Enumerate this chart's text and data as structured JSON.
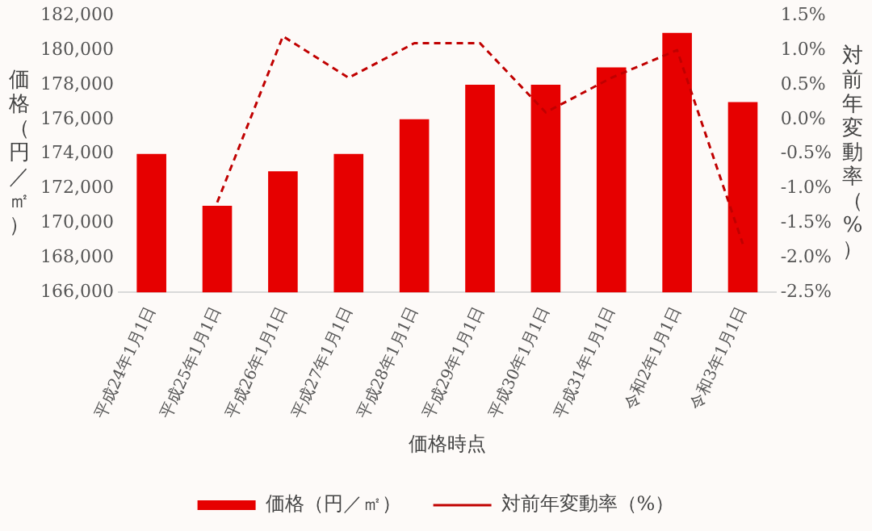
{
  "chart_data": {
    "type": "bar",
    "xlabel": "価格時点",
    "ylabel": "価格（円／㎡）",
    "y2label": "対前年変動率（%）",
    "categories": [
      "平成24年1月1日",
      "平成25年1月1日",
      "平成26年1月1日",
      "平成27年1月1日",
      "平成28年1月1日",
      "平成29年1月1日",
      "平成30年1月1日",
      "平成31年1月1日",
      "令和2年1月1日",
      "令和3年1月1日"
    ],
    "series": [
      {
        "name": "価格（円／㎡）",
        "color": "#e60000",
        "values": [
          174000,
          171000,
          173000,
          174000,
          176000,
          178000,
          178000,
          179000,
          181000,
          177000
        ]
      },
      {
        "name": "対前年変動率（%）",
        "type": "line",
        "axis": "y2",
        "color": "#c00000",
        "line_style": "dashed",
        "marker": "none",
        "values": [
          null,
          -1.2,
          1.2,
          0.6,
          1.1,
          1.1,
          0.1,
          0.6,
          1.0,
          -1.8
        ]
      }
    ],
    "ylim": [
      166000,
      182000
    ],
    "yticks": [
      {
        "value": 166000,
        "label": "166,000"
      },
      {
        "value": 168000,
        "label": "168,000"
      },
      {
        "value": 170000,
        "label": "170,000"
      },
      {
        "value": 172000,
        "label": "172,000"
      },
      {
        "value": 174000,
        "label": "174,000"
      },
      {
        "value": 176000,
        "label": "176,000"
      },
      {
        "value": 178000,
        "label": "178,000"
      },
      {
        "value": 180000,
        "label": "180,000"
      },
      {
        "value": 182000,
        "label": "182,000"
      }
    ],
    "y2lim": [
      -2.5,
      1.5
    ],
    "y2ticks": [
      {
        "value": -2.5,
        "label": "-2.5%"
      },
      {
        "value": -2,
        "label": "-2.0%"
      },
      {
        "value": -1.5,
        "label": "-1.5%"
      },
      {
        "value": -1,
        "label": "-1.0%"
      },
      {
        "value": -0.5,
        "label": "-0.5%"
      },
      {
        "value": 0,
        "label": "0.0%"
      },
      {
        "value": 0.5,
        "label": "0.5%"
      },
      {
        "value": 1,
        "label": "1.0%"
      },
      {
        "value": 1.5,
        "label": "1.5%"
      }
    ],
    "grid": false,
    "legend": "bottom"
  }
}
